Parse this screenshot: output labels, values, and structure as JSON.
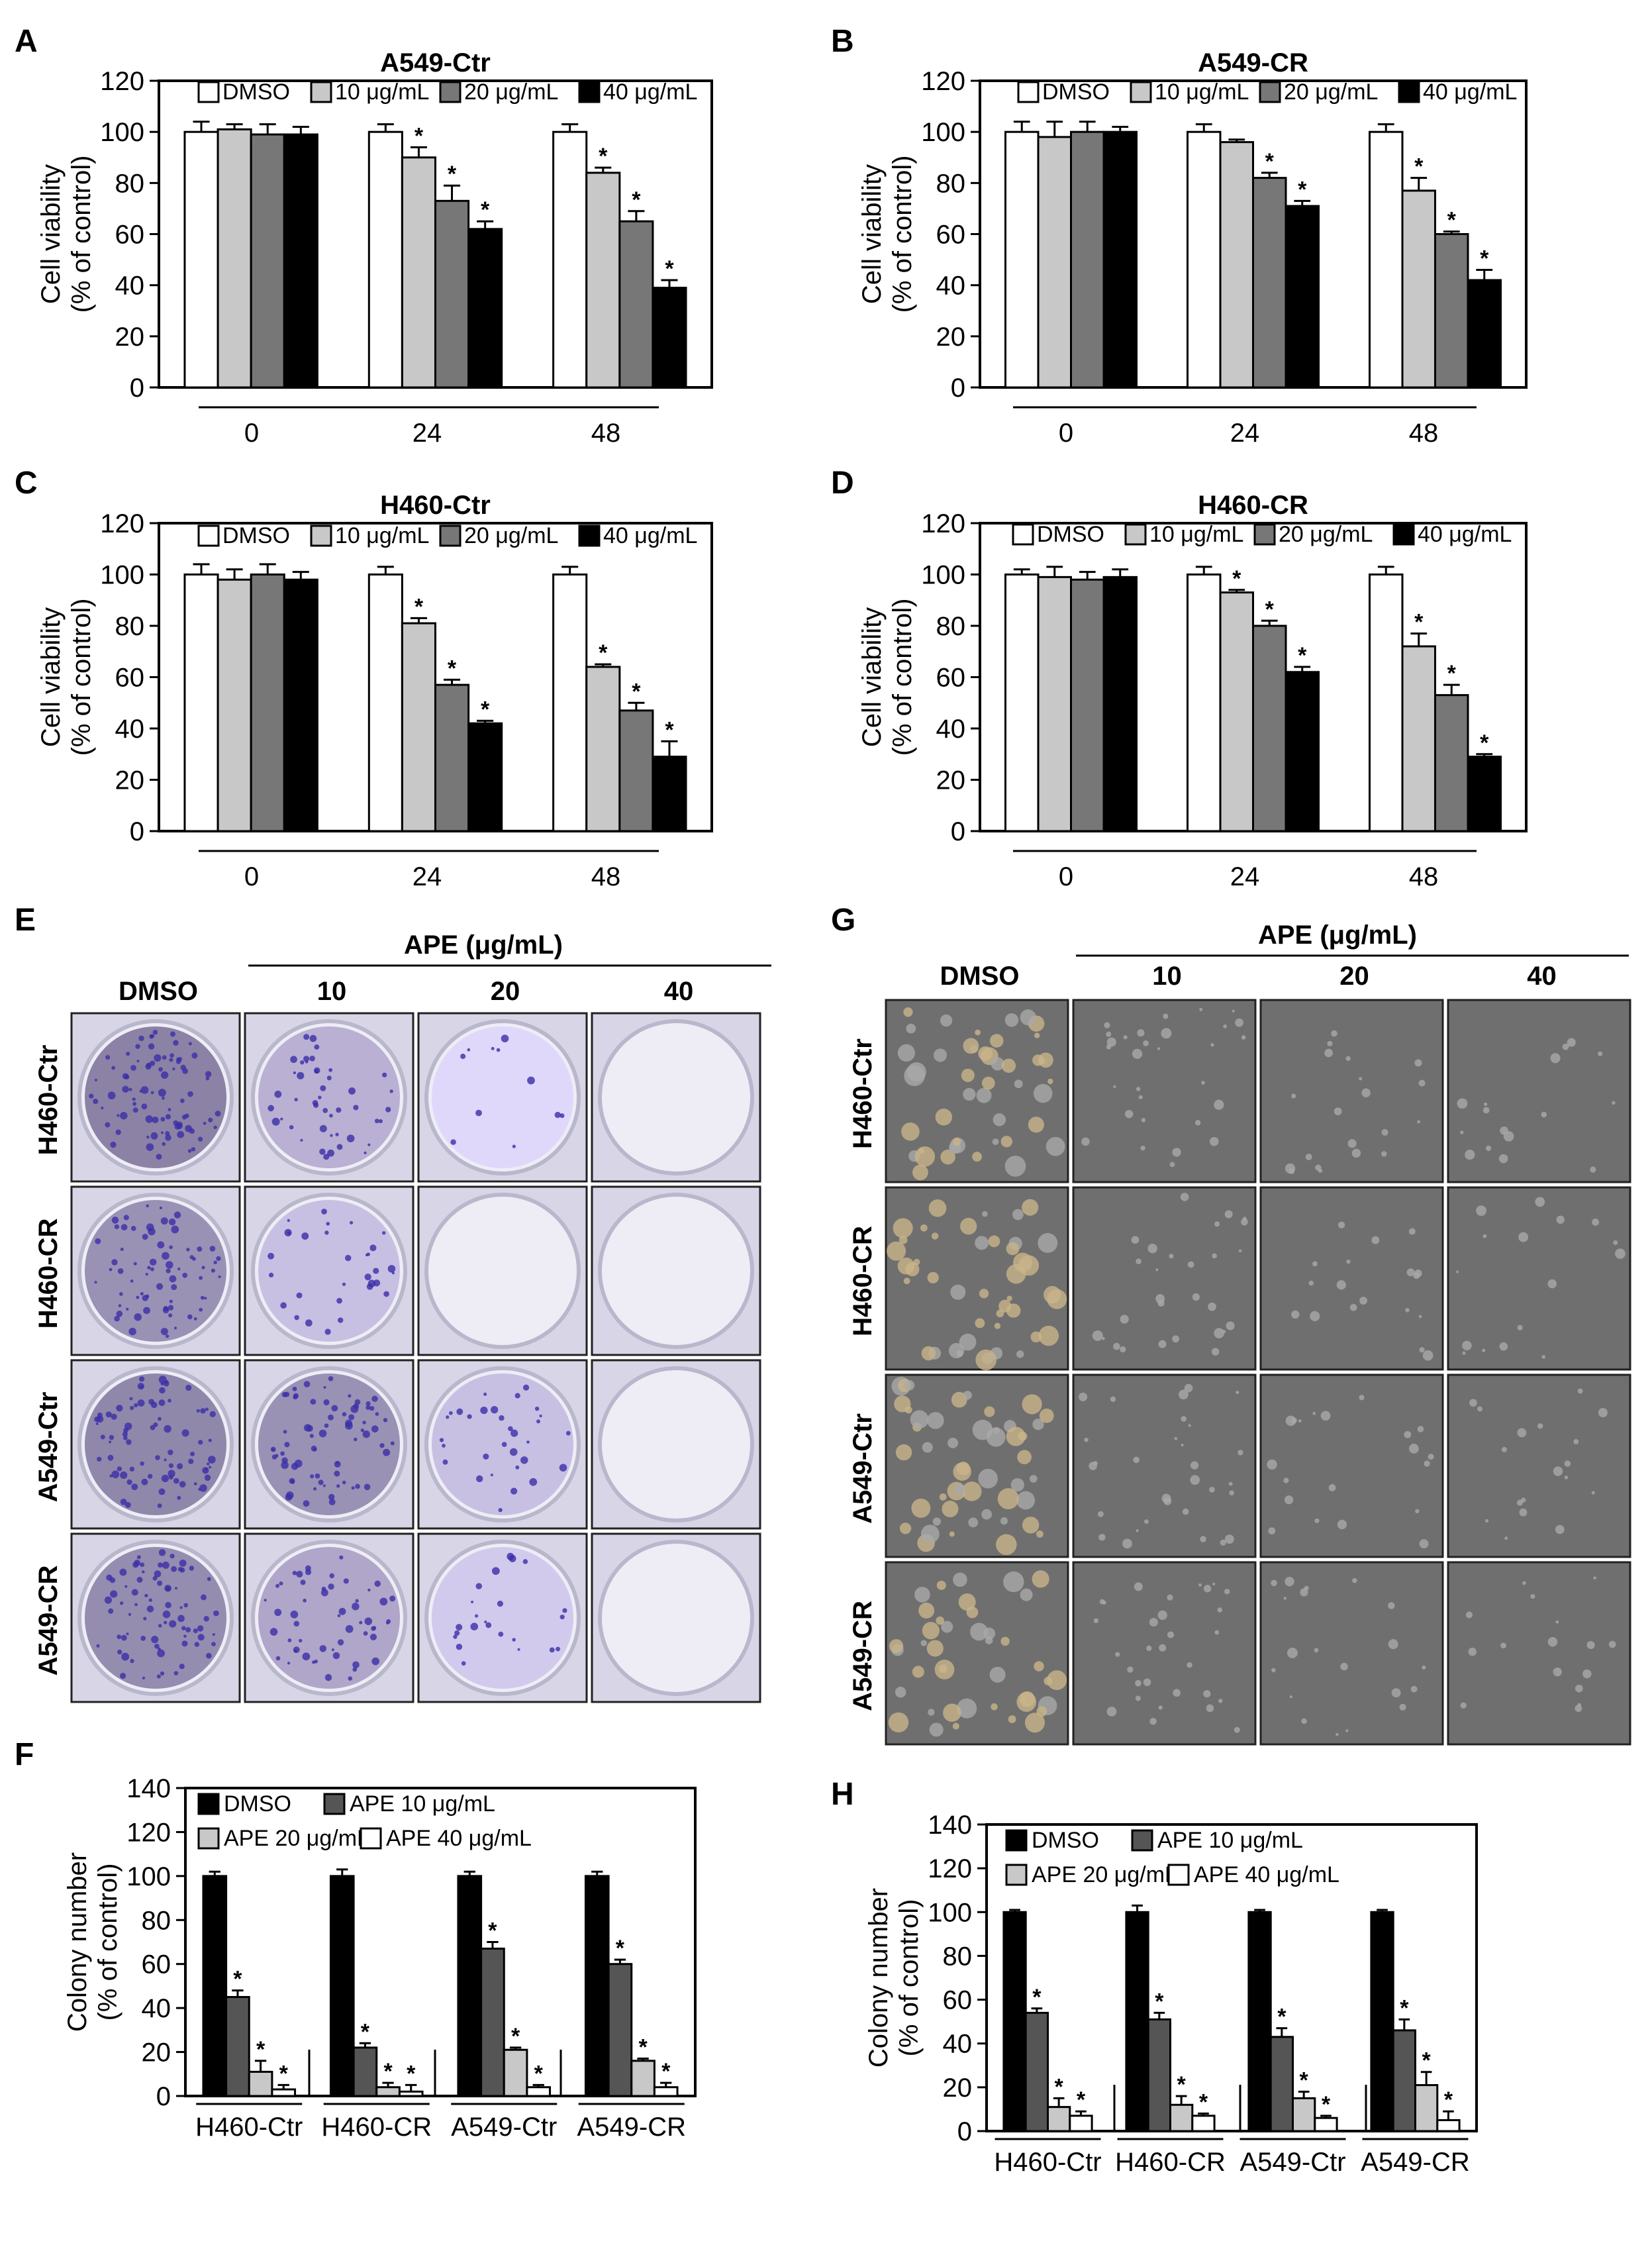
{
  "figure": {
    "panels": [
      {
        "id": "a",
        "letter": "A"
      },
      {
        "id": "b",
        "letter": "B"
      },
      {
        "id": "c",
        "letter": "C"
      },
      {
        "id": "d",
        "letter": "D"
      },
      {
        "id": "e",
        "letter": "E"
      },
      {
        "id": "f",
        "letter": "F"
      },
      {
        "id": "g",
        "letter": "G"
      },
      {
        "id": "h",
        "letter": "H"
      }
    ],
    "image_panels": [
      {
        "id": "e",
        "kind": "crystal-violet colony plates",
        "header": "APE (μg/mL)",
        "columns": [
          "DMSO",
          "10",
          "20",
          "40"
        ],
        "rows": [
          "H460-Ctr",
          "H460-CR",
          "A549-Ctr",
          "A549-CR"
        ],
        "intensity": [
          [
            0.95,
            0.5,
            0.12,
            0.03
          ],
          [
            0.8,
            0.35,
            0.05,
            0.02
          ],
          [
            0.9,
            0.8,
            0.35,
            0.05
          ],
          [
            0.85,
            0.6,
            0.25,
            0.05
          ]
        ]
      },
      {
        "id": "g",
        "kind": "soft agar micrographs",
        "header": "APE (μg/mL)",
        "columns": [
          "DMSO",
          "10",
          "20",
          "40"
        ],
        "rows": [
          "H460-Ctr",
          "H460-CR",
          "A549-Ctr",
          "A549-CR"
        ],
        "intensity": [
          [
            0.9,
            0.5,
            0.25,
            0.15
          ],
          [
            0.85,
            0.45,
            0.2,
            0.15
          ],
          [
            0.95,
            0.5,
            0.25,
            0.2
          ],
          [
            0.8,
            0.5,
            0.25,
            0.15
          ]
        ]
      }
    ]
  },
  "chart_data": [
    {
      "id": "a",
      "type": "bar",
      "title": "A549-Ctr",
      "xlabel": "",
      "ylabel": "Cell viability\n(% of control)",
      "ylim": [
        0,
        120
      ],
      "yticks": [
        "0",
        "20",
        "40",
        "60",
        "80",
        "100",
        "120"
      ],
      "categories": [
        "0",
        "24",
        "48"
      ],
      "series": [
        {
          "name": "DMSO",
          "color": "#ffffff",
          "values": [
            100,
            100,
            100
          ],
          "errors": [
            4,
            3,
            3
          ],
          "sig": [
            false,
            false,
            false
          ]
        },
        {
          "name": "10 μg/mL",
          "color": "#c8c8c8",
          "values": [
            101,
            90,
            84
          ],
          "errors": [
            2,
            4,
            2
          ],
          "sig": [
            false,
            true,
            true
          ]
        },
        {
          "name": "20 μg/mL",
          "color": "#777777",
          "values": [
            99,
            73,
            65
          ],
          "errors": [
            4,
            6,
            4
          ],
          "sig": [
            false,
            true,
            true
          ]
        },
        {
          "name": "40 μg/mL",
          "color": "#000000",
          "values": [
            99,
            62,
            39
          ],
          "errors": [
            3,
            3,
            3
          ],
          "sig": [
            false,
            true,
            true
          ]
        }
      ]
    },
    {
      "id": "b",
      "type": "bar",
      "title": "A549-CR",
      "xlabel": "",
      "ylabel": "Cell viability\n(% of control)",
      "ylim": [
        0,
        120
      ],
      "yticks": [
        "0",
        "20",
        "40",
        "60",
        "80",
        "100",
        "120"
      ],
      "categories": [
        "0",
        "24",
        "48"
      ],
      "series": [
        {
          "name": "DMSO",
          "color": "#ffffff",
          "values": [
            100,
            100,
            100
          ],
          "errors": [
            4,
            3,
            3
          ],
          "sig": [
            false,
            false,
            false
          ]
        },
        {
          "name": "10 μg/mL",
          "color": "#c8c8c8",
          "values": [
            98,
            96,
            77
          ],
          "errors": [
            6,
            1,
            5
          ],
          "sig": [
            false,
            false,
            true
          ]
        },
        {
          "name": "20 μg/mL",
          "color": "#777777",
          "values": [
            100,
            82,
            60
          ],
          "errors": [
            4,
            2,
            1
          ],
          "sig": [
            false,
            true,
            true
          ]
        },
        {
          "name": "40 μg/mL",
          "color": "#000000",
          "values": [
            100,
            71,
            42
          ],
          "errors": [
            2,
            2,
            4
          ],
          "sig": [
            false,
            true,
            true
          ]
        }
      ]
    },
    {
      "id": "c",
      "type": "bar",
      "title": "H460-Ctr",
      "xlabel": "",
      "ylabel": "Cell viability\n(% of control)",
      "ylim": [
        0,
        120
      ],
      "yticks": [
        "0",
        "20",
        "40",
        "60",
        "80",
        "100",
        "120"
      ],
      "categories": [
        "0",
        "24",
        "48"
      ],
      "series": [
        {
          "name": "DMSO",
          "color": "#ffffff",
          "values": [
            100,
            100,
            100
          ],
          "errors": [
            4,
            3,
            3
          ],
          "sig": [
            false,
            false,
            false
          ]
        },
        {
          "name": "10 μg/mL",
          "color": "#c8c8c8",
          "values": [
            98,
            81,
            64
          ],
          "errors": [
            4,
            2,
            1
          ],
          "sig": [
            false,
            true,
            true
          ]
        },
        {
          "name": "20 μg/mL",
          "color": "#777777",
          "values": [
            100,
            57,
            47
          ],
          "errors": [
            4,
            2,
            3
          ],
          "sig": [
            false,
            true,
            true
          ]
        },
        {
          "name": "40 μg/mL",
          "color": "#000000",
          "values": [
            98,
            42,
            29
          ],
          "errors": [
            3,
            1,
            6
          ],
          "sig": [
            false,
            true,
            true
          ]
        }
      ]
    },
    {
      "id": "d",
      "type": "bar",
      "title": "H460-CR",
      "xlabel": "",
      "ylabel": "Cell viability\n(% of control)",
      "ylim": [
        0,
        120
      ],
      "yticks": [
        "0",
        "20",
        "40",
        "60",
        "80",
        "100",
        "120"
      ],
      "categories": [
        "0",
        "24",
        "48"
      ],
      "series": [
        {
          "name": "DMSO",
          "color": "#ffffff",
          "values": [
            100,
            100,
            100
          ],
          "errors": [
            2,
            3,
            3
          ],
          "sig": [
            false,
            false,
            false
          ]
        },
        {
          "name": "10 μg/mL",
          "color": "#c8c8c8",
          "values": [
            99,
            93,
            72
          ],
          "errors": [
            4,
            1,
            5
          ],
          "sig": [
            false,
            true,
            true
          ]
        },
        {
          "name": "20 μg/mL",
          "color": "#777777",
          "values": [
            98,
            80,
            53
          ],
          "errors": [
            3,
            2,
            4
          ],
          "sig": [
            false,
            true,
            true
          ]
        },
        {
          "name": "40 μg/mL",
          "color": "#000000",
          "values": [
            99,
            62,
            29
          ],
          "errors": [
            3,
            2,
            1
          ],
          "sig": [
            false,
            true,
            true
          ]
        }
      ]
    },
    {
      "id": "f",
      "type": "bar",
      "title": "",
      "xlabel": "",
      "ylabel": "Colony number\n(% of control)",
      "ylim": [
        0,
        140
      ],
      "yticks": [
        "0",
        "20",
        "40",
        "60",
        "80",
        "100",
        "120",
        "140"
      ],
      "categories": [
        "H460-Ctr",
        "H460-CR",
        "A549-Ctr",
        "A549-CR"
      ],
      "series": [
        {
          "name": "DMSO",
          "color": "#000000",
          "values": [
            100,
            100,
            100,
            100
          ],
          "errors": [
            2,
            3,
            2,
            2
          ],
          "sig": [
            false,
            false,
            false,
            false
          ]
        },
        {
          "name": "APE 10 μg/mL",
          "color": "#555555",
          "values": [
            45,
            22,
            67,
            60
          ],
          "errors": [
            3,
            2,
            3,
            2
          ],
          "sig": [
            true,
            true,
            true,
            true
          ]
        },
        {
          "name": "APE 20 μg/mL",
          "color": "#c8c8c8",
          "values": [
            11,
            4,
            21,
            16
          ],
          "errors": [
            5,
            2,
            1,
            1
          ],
          "sig": [
            true,
            true,
            true,
            true
          ]
        },
        {
          "name": "APE 40 μg/mL",
          "color": "#ffffff",
          "values": [
            3,
            2,
            4,
            4
          ],
          "errors": [
            2,
            3,
            1,
            2
          ],
          "sig": [
            true,
            true,
            true,
            true
          ]
        }
      ]
    },
    {
      "id": "h",
      "type": "bar",
      "title": "",
      "xlabel": "",
      "ylabel": "Colony number\n(% of control)",
      "ylim": [
        0,
        140
      ],
      "yticks": [
        "0",
        "20",
        "40",
        "60",
        "80",
        "100",
        "120",
        "140"
      ],
      "categories": [
        "H460-Ctr",
        "H460-CR",
        "A549-Ctr",
        "A549-CR"
      ],
      "series": [
        {
          "name": "DMSO",
          "color": "#000000",
          "values": [
            100,
            100,
            100,
            100
          ],
          "errors": [
            1,
            3,
            1,
            1
          ],
          "sig": [
            false,
            false,
            false,
            false
          ]
        },
        {
          "name": "APE 10 μg/mL",
          "color": "#555555",
          "values": [
            54,
            51,
            43,
            46
          ],
          "errors": [
            2,
            3,
            4,
            5
          ],
          "sig": [
            true,
            true,
            true,
            true
          ]
        },
        {
          "name": "APE 20 μg/mL",
          "color": "#c8c8c8",
          "values": [
            11,
            12,
            15,
            21
          ],
          "errors": [
            4,
            4,
            3,
            6
          ],
          "sig": [
            true,
            true,
            true,
            true
          ]
        },
        {
          "name": "APE 40 μg/mL",
          "color": "#ffffff",
          "values": [
            7,
            7,
            6,
            5
          ],
          "errors": [
            2,
            1,
            1,
            4
          ],
          "sig": [
            true,
            true,
            true,
            true
          ]
        }
      ]
    }
  ]
}
